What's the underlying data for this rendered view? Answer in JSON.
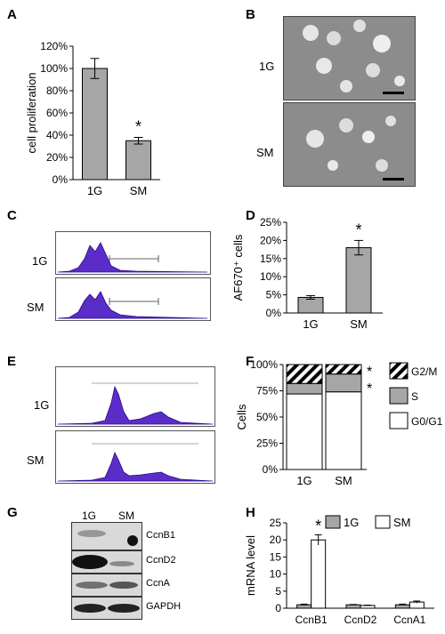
{
  "panels": {
    "A": {
      "label": "A",
      "chart_data": {
        "type": "bar",
        "categories": [
          "1G",
          "SM"
        ],
        "values": [
          100,
          35
        ],
        "errors": [
          9,
          3
        ],
        "ylabel": "cell proliferation",
        "ylim": [
          0,
          120
        ],
        "yticks": [
          "0%",
          "20%",
          "40%",
          "60%",
          "80%",
          "100%",
          "120%"
        ],
        "significance": [
          "",
          "*"
        ],
        "bar_color": "#a6a6a6"
      }
    },
    "B": {
      "label": "B",
      "rows": [
        "1G",
        "SM"
      ]
    },
    "C": {
      "label": "C",
      "rows": [
        "1G",
        "SM"
      ],
      "fill_color": "#5b2dc8"
    },
    "D": {
      "label": "D",
      "chart_data": {
        "type": "bar",
        "categories": [
          "1G",
          "SM"
        ],
        "values": [
          4.3,
          18
        ],
        "errors": [
          0.5,
          2
        ],
        "ylabel": "AF670⁺ cells",
        "ylim": [
          0,
          25
        ],
        "yticks": [
          "0%",
          "5%",
          "10%",
          "15%",
          "20%",
          "25%"
        ],
        "significance": [
          "",
          "*"
        ],
        "bar_color": "#a6a6a6"
      }
    },
    "E": {
      "label": "E",
      "rows": [
        "1G",
        "SM"
      ],
      "fill_color": "#5b2dc8"
    },
    "F": {
      "label": "F",
      "chart_data": {
        "type": "bar",
        "stacked": true,
        "categories": [
          "1G",
          "SM"
        ],
        "series": [
          {
            "name": "G0/G1",
            "values": [
              72,
              74
            ],
            "color": "#ffffff"
          },
          {
            "name": "S",
            "values": [
              10,
              17
            ],
            "color": "#a6a6a6"
          },
          {
            "name": "G2/M",
            "values": [
              18,
              9
            ],
            "color": "hatched"
          }
        ],
        "ylabel": "Cells",
        "ylim": [
          0,
          100
        ],
        "yticks": [
          "0%",
          "25%",
          "50%",
          "75%",
          "100%"
        ],
        "significance_marks": [
          "*",
          "*"
        ],
        "legend": "right"
      }
    },
    "G": {
      "label": "G",
      "lanes": [
        "1G",
        "SM"
      ],
      "proteins": [
        "CcnB1",
        "CcnD2",
        "CcnA",
        "GAPDH"
      ]
    },
    "H": {
      "label": "H",
      "chart_data": {
        "type": "bar",
        "categories": [
          "CcnB1",
          "CcnD2",
          "CcnA1"
        ],
        "series": [
          {
            "name": "1G",
            "values": [
              1,
              1,
              1
            ],
            "errors": [
              0.2,
              0.1,
              0.2
            ],
            "color": "#a6a6a6"
          },
          {
            "name": "SM",
            "values": [
              20,
              0.8,
              1.8
            ],
            "errors": [
              1.5,
              0.1,
              0.3
            ],
            "color": "#ffffff"
          }
        ],
        "ylabel": "mRNA level",
        "ylim": [
          0,
          25
        ],
        "yticks": [
          "0",
          "5",
          "10",
          "15",
          "20",
          "25"
        ],
        "significance": "*",
        "legend": "top"
      }
    }
  }
}
